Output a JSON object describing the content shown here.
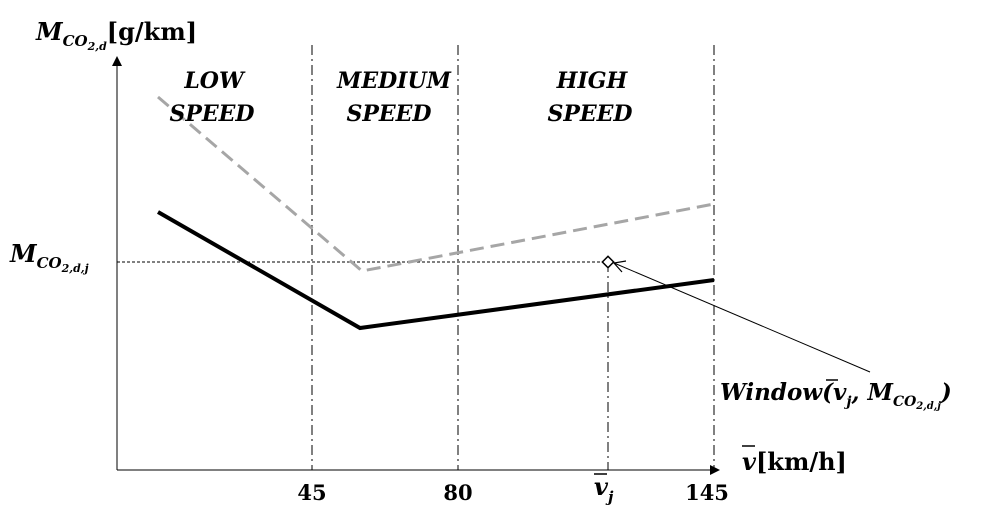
{
  "y_axis": {
    "symbol": "M",
    "subscript": "CO",
    "subscript2": "2,d",
    "unit": "[g/km]"
  },
  "x_axis": {
    "symbol": "v",
    "unit": "[km/h]"
  },
  "zones": [
    {
      "line1": "LOW",
      "line2": "SPEED"
    },
    {
      "line1": "MEDIUM",
      "line2": "SPEED"
    },
    {
      "line1": "HIGH",
      "line2": "SPEED"
    }
  ],
  "x_ticks": [
    "45",
    "80",
    "145"
  ],
  "vj_label": {
    "symbol": "v",
    "subscript": "j"
  },
  "y_marker": {
    "symbol": "M",
    "subscript": "CO",
    "subscript2": "2,d,j"
  },
  "window_label": {
    "prefix": "Window(",
    "v": "v",
    "v_sub": "j",
    "sep": ", M",
    "m_sub": "CO",
    "m_sub2": "2,d,j",
    "suffix": ")"
  }
}
